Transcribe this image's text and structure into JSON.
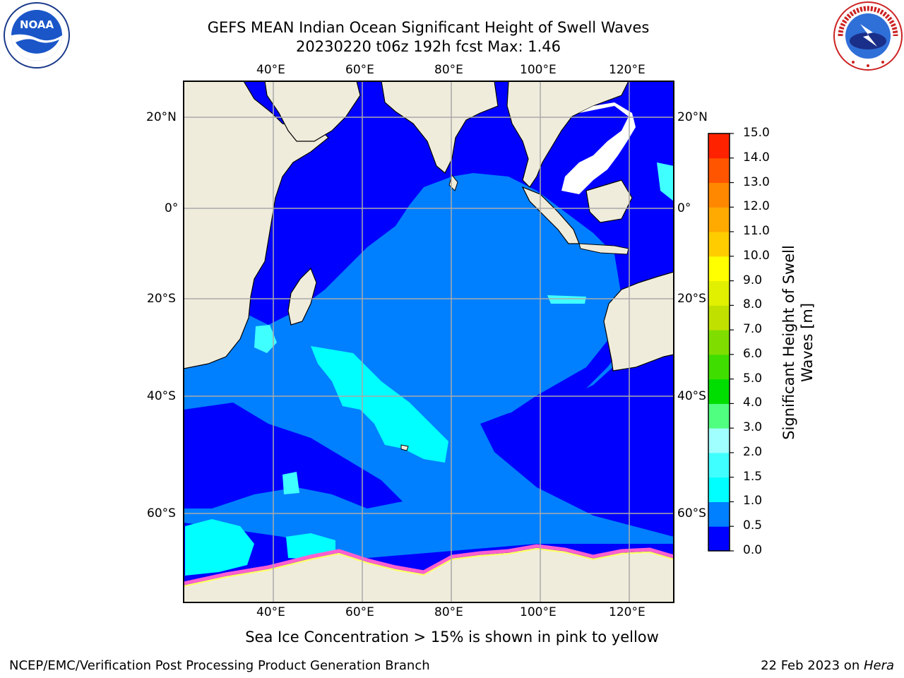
{
  "title": {
    "line1": "GEFS MEAN Indian Ocean Significant Height of Swell Waves",
    "line2": "20230220 t06z 192h fcst   Max: 1.46"
  },
  "axes": {
    "lon_ticks": [
      "40°E",
      "60°E",
      "80°E",
      "100°E",
      "120°E"
    ],
    "lat_ticks": [
      "20°N",
      "0°",
      "20°S",
      "40°S",
      "60°S"
    ]
  },
  "colorbar": {
    "label_line1": "Significant Height of Swell",
    "label_line2": "Waves [m]",
    "ticks": [
      "0.0",
      "0.5",
      "1.0",
      "1.5",
      "2.0",
      "3.0",
      "4.0",
      "5.0",
      "6.0",
      "7.0",
      "8.0",
      "9.0",
      "10.0",
      "11.0",
      "12.0",
      "13.0",
      "14.0",
      "15.0"
    ],
    "colors": [
      "#0000ff",
      "#0080ff",
      "#00ffff",
      "#40ffff",
      "#a0ffff",
      "#50ff80",
      "#00dd00",
      "#40dd00",
      "#80dd00",
      "#c0e000",
      "#e0f000",
      "#ffff00",
      "#ffcc00",
      "#ffaa00",
      "#ff8800",
      "#ff5500",
      "#ff2200"
    ]
  },
  "note": "Sea Ice Concentration > 15% is shown in pink to yellow",
  "footer": {
    "left": "NCEP/EMC/Verification Post Processing Product Generation Branch",
    "right_date": "22 Feb 2023 on ",
    "right_machine": "Hera"
  },
  "logos": {
    "left": "NOAA",
    "left_ring": "NATIONAL OCEANIC AND ATMOSPHERIC ADMINISTRATION · U.S. DEPARTMENT OF COMMERCE",
    "right_ring": "NATIONAL WEATHER SERVICE"
  },
  "map_colors": {
    "land": "#efecdc",
    "swell_low": "#0000ff",
    "swell_mid": "#0080ff",
    "swell_high": "#00ffff",
    "swell_higher": "#40ffff",
    "ice_pink": "#ff60d0",
    "ice_yellow": "#ffff60"
  }
}
